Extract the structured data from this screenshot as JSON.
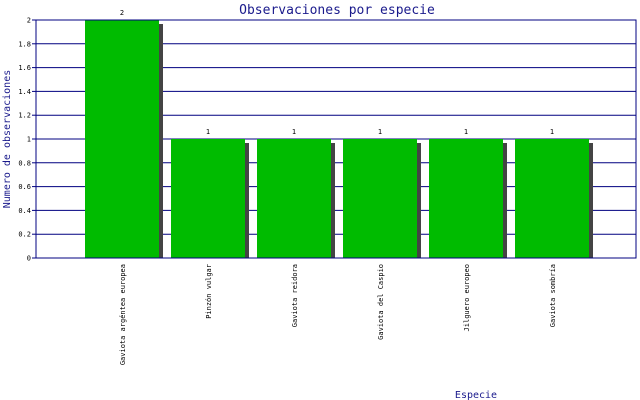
{
  "chart_data": {
    "type": "bar",
    "title": "Observaciones por especie",
    "xlabel": "Especie",
    "ylabel": "Numero de observaciones",
    "categories": [
      "Gaviota argéntea europea",
      "Pinzón vulgar",
      "Gaviota reidora",
      "Gaviota del Caspio",
      "Jilguero europeo",
      "Gaviota sombría"
    ],
    "values": [
      2,
      1,
      1,
      1,
      1,
      1
    ],
    "ylim": [
      0,
      2
    ],
    "yticks": [
      "0",
      "0.2",
      "0.4",
      "0.6",
      "0.8",
      "1",
      "1.2",
      "1.4",
      "1.6",
      "1.8",
      "2"
    ],
    "grid": true,
    "data_labels": true,
    "colors": {
      "bar": "#00bb00",
      "shadow": "#444444",
      "grid": "#000080",
      "frame": "#000080",
      "title": "#1a1a8c"
    }
  }
}
